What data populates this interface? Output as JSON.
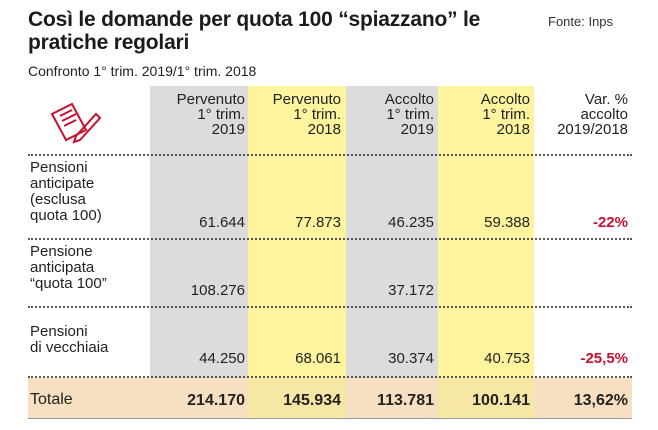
{
  "title": "Così le domande per quota 100 “spiazzano” le pratiche regolari",
  "source": "Fonte: Inps",
  "subtitle": "Confronto 1° trim. 2019/1° trim. 2018",
  "chart_data": {
    "type": "table",
    "columns": [
      [
        "Pervenuto",
        "1° trim.",
        "2019"
      ],
      [
        "Pervenuto",
        "1° trim.",
        "2018"
      ],
      [
        "Accolto",
        "1° trim.",
        "2019"
      ],
      [
        "Accolto",
        "1° trim.",
        "2018"
      ],
      [
        "Var. %",
        "accolto",
        "2019/2018"
      ]
    ],
    "rows": [
      {
        "label": [
          "Pensioni",
          "anticipate",
          "(esclusa",
          "quota 100)"
        ],
        "values": [
          "61.644",
          "77.873",
          "46.235",
          "59.388",
          "-22%"
        ]
      },
      {
        "label": [
          "Pensione",
          "anticipata",
          "“quota 100”"
        ],
        "values": [
          "108.276",
          "",
          "37.172",
          "",
          ""
        ]
      },
      {
        "label": [
          "Pensioni",
          "di vecchiaia"
        ],
        "values": [
          "44.250",
          "68.061",
          "30.374",
          "40.753",
          "-25,5%"
        ]
      },
      {
        "label": [
          "Totale"
        ],
        "values": [
          "214.170",
          "145.934",
          "113.781",
          "100.141",
          "13,62%"
        ]
      }
    ]
  }
}
